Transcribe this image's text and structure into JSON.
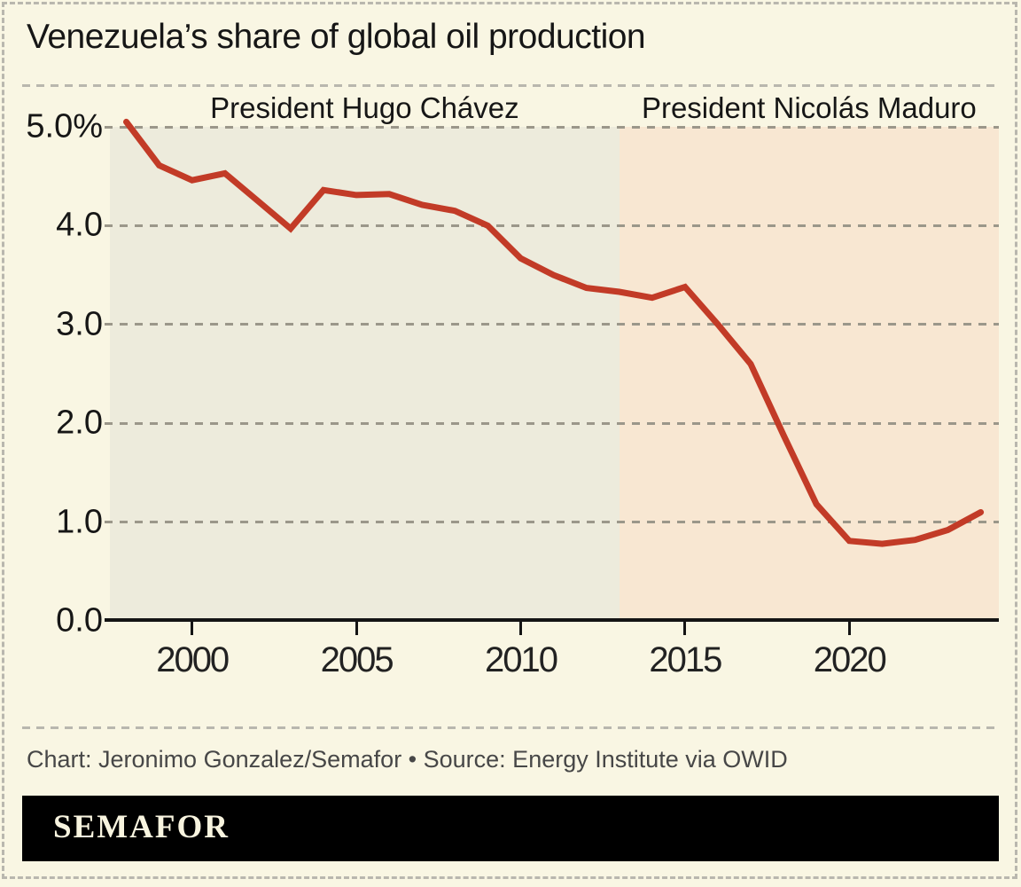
{
  "title": "Venezuela’s share of global oil production",
  "regions": [
    {
      "label": "President Hugo Chávez",
      "x_start": 1997.5,
      "x_end": 2013,
      "color": "#edebdc"
    },
    {
      "label": "President Nicolás Maduro",
      "x_start": 2013,
      "x_end": 2024.55,
      "color": "#f8e7d2"
    }
  ],
  "chart_data": {
    "type": "line",
    "title": "Venezuela’s share of global oil production",
    "xlabel": "",
    "ylabel": "",
    "xlim": [
      1997.5,
      2024.55
    ],
    "ylim": [
      0,
      5
    ],
    "x_ticks": [
      2000,
      2005,
      2010,
      2015,
      2020
    ],
    "y_ticks": [
      "5.0%",
      "4.0",
      "3.0",
      "2.0",
      "1.0",
      "0.0"
    ],
    "y_tick_values": [
      5,
      4,
      3,
      2,
      1,
      0
    ],
    "grid": "horizontal-dashed",
    "legend": "none",
    "annotations": [
      "President Hugo Chávez",
      "President Nicolás Maduro"
    ],
    "series": [
      {
        "name": "Share of global oil production (%)",
        "color": "#c23b27",
        "x": [
          1998,
          1999,
          2000,
          2001,
          2002,
          2003,
          2004,
          2005,
          2006,
          2007,
          2008,
          2009,
          2010,
          2011,
          2012,
          2013,
          2014,
          2015,
          2016,
          2017,
          2018,
          2019,
          2020,
          2021,
          2022,
          2023,
          2024
        ],
        "values": [
          5.05,
          4.61,
          4.46,
          4.53,
          4.25,
          3.97,
          4.36,
          4.31,
          4.32,
          4.21,
          4.15,
          4.0,
          3.67,
          3.5,
          3.37,
          3.33,
          3.27,
          3.38,
          3.0,
          2.6,
          1.88,
          1.18,
          0.81,
          0.78,
          0.82,
          0.92,
          1.1
        ]
      }
    ]
  },
  "footer": {
    "credit": "Chart: Jeronimo Gonzalez/Semafor • Source: Energy Institute via OWID"
  },
  "logo": {
    "text": "SEMAFOR"
  },
  "colors": {
    "background": "#f9f6e3",
    "chavez_band": "#edebdc",
    "maduro_band": "#f8e7d2",
    "line": "#c23b27",
    "gridline": "#9b978a",
    "axis": "#141414",
    "border_dash": "#b9b7ae",
    "title_text": "#161616",
    "credit_text": "#474747",
    "logo_bar": "#000000",
    "logo_text": "#f8f4df"
  }
}
